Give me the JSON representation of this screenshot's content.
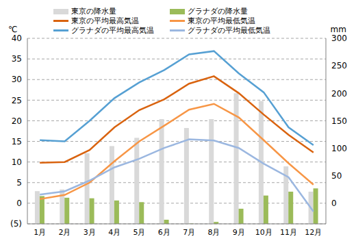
{
  "chart_data": {
    "type": "bar",
    "ylabel": "℃",
    "y2label": "mm",
    "categories": [
      "1月",
      "2月",
      "3月",
      "4月",
      "5月",
      "6月",
      "7月",
      "8月",
      "9月",
      "10月",
      "11月",
      "12月"
    ],
    "ylim": [
      -5,
      40
    ],
    "yticks": [
      {
        "value": -5,
        "label": "(5)"
      },
      0,
      5,
      10,
      15,
      20,
      25,
      30,
      35,
      40
    ],
    "y2lim": [
      -37.5,
      300
    ],
    "y2ticks": [
      0,
      50,
      100,
      150,
      200,
      250,
      300
    ],
    "grid": true,
    "legend": "top",
    "series": [
      {
        "name": "東京の降水量",
        "type": "bar",
        "axis": "y2",
        "color": "#d9d9d9",
        "values": [
          22,
          25,
          91,
          104,
          119,
          153,
          137,
          153,
          200,
          186,
          67,
          21
        ]
      },
      {
        "name": "グラナダの降水量",
        "type": "bar",
        "axis": "y2",
        "color": "#9bbb59",
        "values": [
          13,
          10,
          9,
          5,
          2,
          -30,
          -37,
          -34,
          -10,
          14,
          21,
          27
        ]
      },
      {
        "name": "東京の平均最高気温",
        "type": "line",
        "axis": "y",
        "color": "#d9630f",
        "values": [
          9.8,
          10.0,
          12.9,
          18.4,
          22.6,
          25.2,
          29.0,
          30.8,
          26.7,
          21.5,
          16.6,
          12.3
        ]
      },
      {
        "name": "東京の平均最低気温",
        "type": "line",
        "axis": "y",
        "color": "#f79646",
        "values": [
          1.0,
          2.0,
          5.0,
          10.2,
          15.0,
          18.8,
          22.7,
          24.1,
          20.8,
          15.3,
          9.7,
          4.5
        ]
      },
      {
        "name": "グラナダの平均最高気温",
        "type": "line",
        "axis": "y",
        "color": "#56a0d3",
        "values": [
          15.3,
          15.0,
          20.0,
          25.5,
          29.3,
          32.3,
          36.1,
          36.9,
          31.5,
          26.9,
          18.4,
          14.1
        ]
      },
      {
        "name": "グラナダの平均最低気温",
        "type": "line",
        "axis": "y",
        "color": "#9bb7e0",
        "values": [
          2.1,
          2.9,
          5.5,
          8.7,
          10.8,
          13.4,
          15.5,
          15.2,
          13.4,
          9.6,
          6.3,
          -2.0
        ]
      }
    ]
  }
}
